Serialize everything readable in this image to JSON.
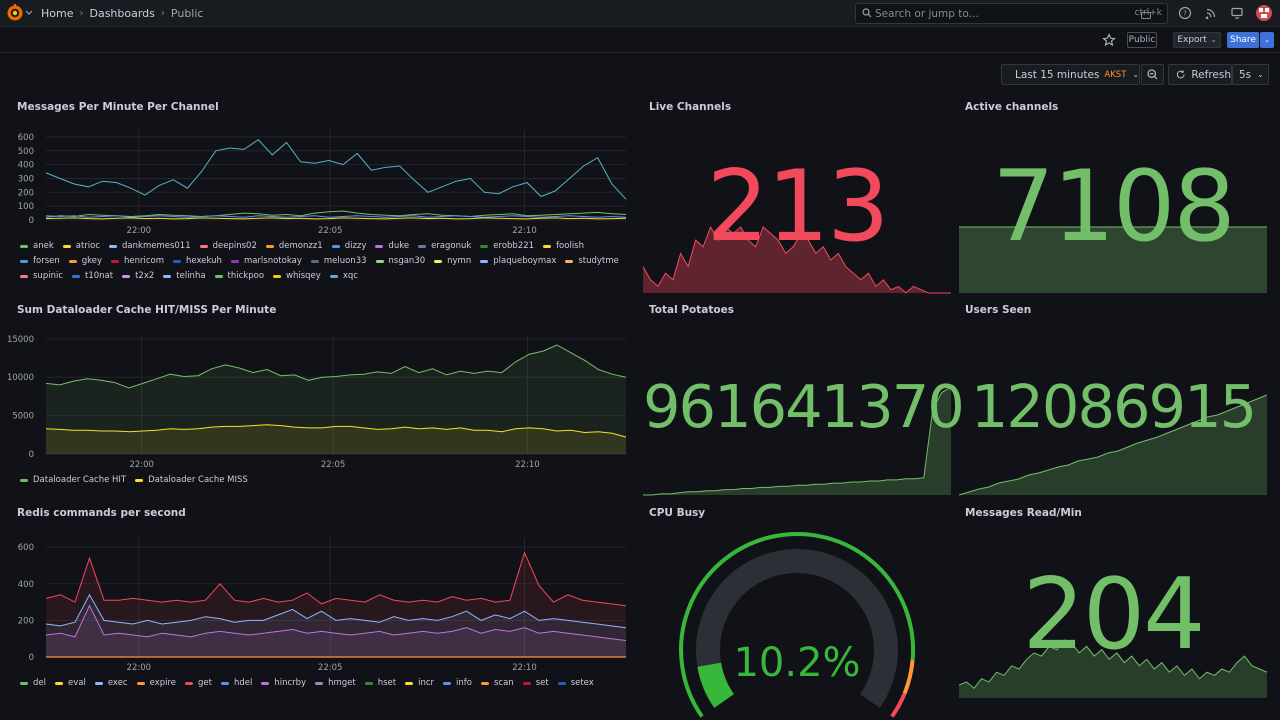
{
  "topbar": {
    "crumbs": [
      "Home",
      "Dashboards",
      "Public"
    ],
    "search_placeholder": "Search or jump to...",
    "search_shortcut": "ctrl+k"
  },
  "subbar": {
    "public_badge": "Public",
    "export_label": "Export",
    "share_label": "Share"
  },
  "timepicker": {
    "range_label": "Last 15 minutes",
    "timezone": "AKST",
    "refresh_label": "Refresh",
    "refresh_interval": "5s"
  },
  "colors": {
    "green": "#73bf69",
    "red": "#f2495c",
    "yellow": "#fade2a",
    "blue": "#5794f2",
    "orange": "#ff9830",
    "purple": "#b877d9"
  },
  "panels": {
    "messages_per_minute": {
      "title": "Messages Per Minute Per Channel",
      "legend": [
        {
          "name": "anek",
          "color": "#73bf69"
        },
        {
          "name": "atrioc",
          "color": "#fade2a"
        },
        {
          "name": "dankmemes011",
          "color": "#8ab8ff"
        },
        {
          "name": "deepins02",
          "color": "#ff7383"
        },
        {
          "name": "demonzz1",
          "color": "#ff9830"
        },
        {
          "name": "dizzy",
          "color": "#5794f2"
        },
        {
          "name": "duke",
          "color": "#b877d9"
        },
        {
          "name": "eragonuk",
          "color": "#6e78a8"
        },
        {
          "name": "erobb221",
          "color": "#37872d"
        },
        {
          "name": "foolish",
          "color": "#fade2a"
        },
        {
          "name": "forsen",
          "color": "#5794f2"
        },
        {
          "name": "gkey",
          "color": "#ff9830"
        },
        {
          "name": "henricom",
          "color": "#c4162a"
        },
        {
          "name": "hexekuh",
          "color": "#1f60c4"
        },
        {
          "name": "marlsnotokay",
          "color": "#8f3bb8"
        },
        {
          "name": "meluon33",
          "color": "#5a6b8c"
        },
        {
          "name": "nsgan30",
          "color": "#96d98d"
        },
        {
          "name": "nymn",
          "color": "#ffee52"
        },
        {
          "name": "plaqueboymax",
          "color": "#8ab8ff"
        },
        {
          "name": "studytme",
          "color": "#ffb357"
        },
        {
          "name": "supinic",
          "color": "#ff7383"
        },
        {
          "name": "t10nat",
          "color": "#3274d9"
        },
        {
          "name": "t2x2",
          "color": "#ca95e5"
        },
        {
          "name": "telinha",
          "color": "#8ab8ff"
        },
        {
          "name": "thickpoo",
          "color": "#73bf69"
        },
        {
          "name": "whisqey",
          "color": "#f2cc0c"
        },
        {
          "name": "xqc",
          "color": "#5ab1c7"
        }
      ]
    },
    "dataloader_cache": {
      "title": "Sum Dataloader Cache HIT/MISS Per Minute",
      "legend": [
        {
          "name": "Dataloader Cache HIT",
          "color": "#73bf69"
        },
        {
          "name": "Dataloader Cache MISS",
          "color": "#fade2a"
        }
      ]
    },
    "redis_commands": {
      "title": "Redis commands per second",
      "legend": [
        {
          "name": "del",
          "color": "#73bf69"
        },
        {
          "name": "eval",
          "color": "#fade2a"
        },
        {
          "name": "exec",
          "color": "#8ab8ff"
        },
        {
          "name": "expire",
          "color": "#ff9830"
        },
        {
          "name": "get",
          "color": "#f2495c"
        },
        {
          "name": "hdel",
          "color": "#5794f2"
        },
        {
          "name": "hincrby",
          "color": "#b877d9"
        },
        {
          "name": "hmget",
          "color": "#8f8fbf"
        },
        {
          "name": "hset",
          "color": "#37872d"
        },
        {
          "name": "incr",
          "color": "#fade2a"
        },
        {
          "name": "info",
          "color": "#5794f2"
        },
        {
          "name": "scan",
          "color": "#ff9830"
        },
        {
          "name": "set",
          "color": "#c4162a"
        },
        {
          "name": "setex",
          "color": "#1f60c4"
        }
      ]
    },
    "live_channels": {
      "title": "Live Channels",
      "value": "213",
      "color": "#f2495c"
    },
    "active_channels": {
      "title": "Active channels",
      "value": "7108",
      "color": "#73bf69"
    },
    "total_potatoes": {
      "title": "Total Potatoes",
      "value": "961641370",
      "color": "#73bf69"
    },
    "users_seen": {
      "title": "Users Seen",
      "value": "12086915",
      "color": "#73bf69"
    },
    "cpu_busy": {
      "title": "CPU Busy",
      "value": "10.2%",
      "percent": 10.2,
      "color": "#37b83a"
    },
    "messages_read": {
      "title": "Messages Read/Min",
      "value": "204",
      "color": "#73bf69"
    }
  },
  "chart_data": [
    {
      "type": "line",
      "title": "Messages Per Minute Per Channel",
      "x_ticks": [
        "22:00",
        "22:05",
        "22:10"
      ],
      "y_ticks": [
        0,
        100,
        200,
        300,
        400,
        500,
        600
      ],
      "ylim": [
        0,
        650
      ],
      "series": [
        {
          "name": "xqc",
          "color": "#5ab1c7",
          "values": [
            340,
            300,
            260,
            240,
            280,
            270,
            230,
            180,
            250,
            290,
            230,
            350,
            500,
            520,
            510,
            580,
            470,
            560,
            420,
            410,
            430,
            400,
            480,
            360,
            380,
            390,
            290,
            200,
            240,
            280,
            300,
            200,
            190,
            240,
            270,
            170,
            210,
            300,
            390,
            450,
            260,
            150
          ]
        },
        {
          "name": "anek",
          "color": "#73bf69",
          "values": [
            20,
            30,
            25,
            40,
            35,
            30,
            25,
            30,
            40,
            35,
            30,
            25,
            30,
            40,
            50,
            45,
            35,
            40,
            30,
            50,
            60,
            65,
            50,
            40,
            35,
            30,
            40,
            45,
            35,
            30,
            25,
            35,
            40,
            45,
            30,
            35,
            40,
            45,
            50,
            55,
            45,
            40
          ]
        },
        {
          "name": "forsen",
          "color": "#5794f2",
          "values": [
            30,
            25,
            30,
            20,
            25,
            30,
            20,
            25,
            30,
            25,
            20,
            25,
            30,
            25,
            20,
            30,
            25,
            20,
            25,
            30,
            20,
            25,
            30,
            25,
            20,
            25,
            30,
            20,
            25,
            30,
            25,
            20,
            25,
            30,
            25,
            20,
            25,
            30,
            25,
            20,
            25,
            20
          ]
        },
        {
          "name": "atrioc",
          "color": "#fade2a",
          "values": [
            10,
            12,
            15,
            10,
            8,
            12,
            15,
            10,
            12,
            8,
            10,
            15,
            12,
            10,
            8,
            12,
            15,
            10,
            12,
            8,
            10,
            15,
            12,
            10,
            8,
            12,
            15,
            10,
            12,
            8,
            10,
            15,
            12,
            10,
            8,
            12,
            15,
            10,
            12,
            8,
            10,
            12
          ]
        }
      ]
    },
    {
      "type": "area",
      "title": "Sum Dataloader Cache HIT/MISS Per Minute",
      "x_ticks": [
        "22:00",
        "22:05",
        "22:10"
      ],
      "y_ticks": [
        0,
        5000,
        10000,
        15000
      ],
      "ylim": [
        0,
        15500
      ],
      "series": [
        {
          "name": "Dataloader Cache HIT",
          "color": "#73bf69",
          "values": [
            9200,
            9000,
            9500,
            9800,
            9600,
            9300,
            8600,
            9200,
            9800,
            10400,
            10100,
            10200,
            11100,
            11600,
            11200,
            10600,
            11000,
            10200,
            10300,
            9600,
            10000,
            10100,
            10300,
            10400,
            10700,
            10500,
            11400,
            10600,
            11100,
            10300,
            10800,
            10500,
            10800,
            10600,
            12000,
            13000,
            13400,
            14200,
            13200,
            12200,
            11000,
            10400,
            10000
          ]
        },
        {
          "name": "Dataloader Cache MISS",
          "color": "#fade2a",
          "values": [
            3300,
            3200,
            3100,
            3100,
            3000,
            3000,
            2900,
            3000,
            3100,
            3300,
            3200,
            3300,
            3500,
            3600,
            3600,
            3700,
            3800,
            3700,
            3500,
            3400,
            3400,
            3600,
            3600,
            3400,
            3200,
            3300,
            3500,
            3300,
            3400,
            3200,
            3400,
            3100,
            3100,
            2900,
            3300,
            3400,
            3300,
            3000,
            3100,
            2800,
            2900,
            2700,
            2200
          ]
        }
      ]
    },
    {
      "type": "area",
      "title": "Redis commands per second",
      "x_ticks": [
        "22:00",
        "22:05",
        "22:10"
      ],
      "y_ticks": [
        0,
        200,
        400,
        600
      ],
      "ylim": [
        0,
        650
      ],
      "series": [
        {
          "name": "get",
          "color": "#f2495c",
          "values": [
            320,
            340,
            300,
            540,
            310,
            310,
            320,
            310,
            300,
            310,
            300,
            310,
            400,
            310,
            300,
            320,
            300,
            310,
            350,
            290,
            320,
            310,
            300,
            340,
            310,
            300,
            310,
            300,
            330,
            310,
            320,
            300,
            310,
            570,
            390,
            300,
            340,
            310,
            300,
            290,
            280
          ]
        },
        {
          "name": "hdel",
          "color": "#8ab8ff",
          "values": [
            180,
            170,
            190,
            340,
            200,
            190,
            180,
            200,
            180,
            190,
            200,
            220,
            210,
            190,
            200,
            200,
            230,
            260,
            210,
            250,
            200,
            210,
            200,
            190,
            220,
            200,
            210,
            200,
            220,
            250,
            200,
            230,
            210,
            250,
            200,
            210,
            200,
            190,
            180,
            170,
            160
          ]
        },
        {
          "name": "hincrby",
          "color": "#b877d9",
          "values": [
            120,
            130,
            110,
            280,
            120,
            130,
            120,
            110,
            130,
            120,
            110,
            130,
            140,
            130,
            120,
            130,
            140,
            150,
            130,
            140,
            130,
            120,
            130,
            140,
            120,
            130,
            140,
            130,
            140,
            160,
            130,
            150,
            140,
            160,
            130,
            140,
            130,
            120,
            110,
            100,
            90
          ]
        }
      ]
    }
  ],
  "sparklines": {
    "live_channels": [
      40,
      20,
      10,
      30,
      20,
      60,
      40,
      80,
      70,
      100,
      80,
      100,
      90,
      100,
      80,
      70,
      100,
      90,
      80,
      60,
      70,
      90,
      80,
      60,
      70,
      50,
      60,
      40,
      30,
      20,
      30,
      10,
      20,
      5,
      10,
      0,
      10,
      5,
      0,
      0,
      0,
      0
    ],
    "active_channels": [
      55,
      55,
      55,
      55,
      55,
      55,
      55,
      55,
      55,
      55,
      55,
      55,
      55,
      55,
      55,
      55,
      55,
      55,
      55,
      55,
      55,
      55,
      55,
      55,
      55,
      55,
      55,
      55,
      55,
      55,
      55,
      55,
      55,
      55,
      55,
      55,
      55,
      55,
      55,
      55,
      55,
      55
    ],
    "total_potatoes": [
      0,
      0,
      1,
      1,
      2,
      3,
      3,
      4,
      4,
      5,
      5,
      6,
      6,
      7,
      7,
      8,
      8,
      9,
      9,
      10,
      10,
      11,
      11,
      12,
      12,
      13,
      13,
      14,
      14,
      15,
      15,
      16,
      80,
      95,
      100
    ],
    "users_seen": [
      0,
      3,
      6,
      8,
      12,
      14,
      16,
      20,
      22,
      25,
      28,
      30,
      34,
      36,
      38,
      42,
      44,
      48,
      52,
      55,
      58,
      62,
      66,
      70,
      74,
      78,
      80,
      84,
      88,
      92,
      96,
      100
    ],
    "messages_read": [
      20,
      25,
      15,
      30,
      25,
      40,
      35,
      50,
      45,
      60,
      70,
      65,
      80,
      75,
      90,
      85,
      70,
      80,
      65,
      75,
      60,
      70,
      55,
      65,
      50,
      60,
      45,
      55,
      40,
      50,
      35,
      45,
      30,
      40,
      35,
      45,
      40,
      55,
      65,
      50,
      45,
      40
    ]
  }
}
